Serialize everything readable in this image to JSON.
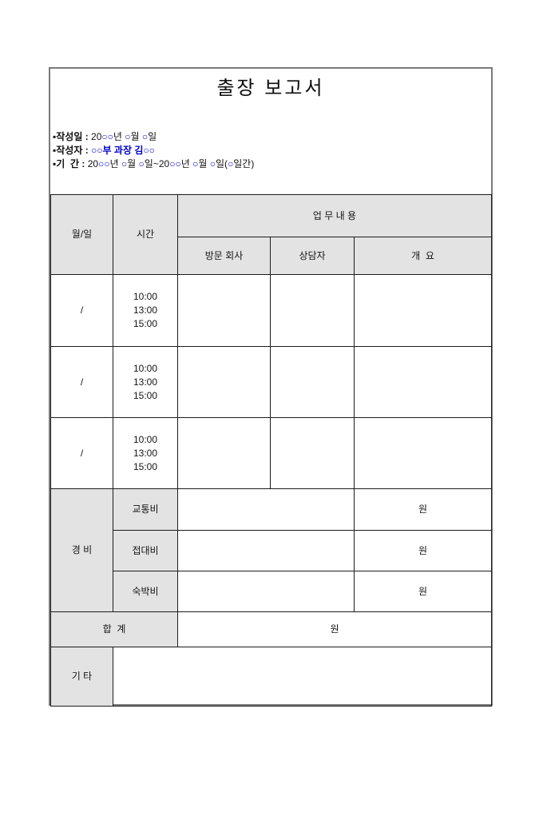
{
  "page": {
    "title": "출장 보고서"
  },
  "info": {
    "lines": [
      {
        "segments": [
          {
            "t": "▪작성일",
            "b": 1
          },
          {
            "t": " : ",
            "b": 1
          },
          {
            "t": "20"
          },
          {
            "t": "○○",
            "b": 1,
            "c": "#0000cc"
          },
          {
            "t": "년 "
          },
          {
            "t": "○",
            "b": 1,
            "c": "#0000cc"
          },
          {
            "t": "월 "
          },
          {
            "t": "○",
            "b": 1,
            "c": "#0000cc"
          },
          {
            "t": "일"
          }
        ]
      },
      {
        "segments": [
          {
            "t": "▪작성자",
            "b": 1
          },
          {
            "t": " : ",
            "b": 1
          },
          {
            "t": "○○부 과장 김○○",
            "b": 1,
            "c": "#0000cc"
          }
        ]
      },
      {
        "segments": [
          {
            "t": "▪기  간",
            "b": 1
          },
          {
            "t": " : ",
            "b": 1
          },
          {
            "t": "20"
          },
          {
            "t": "○○",
            "b": 1,
            "c": "#0000cc"
          },
          {
            "t": "년 "
          },
          {
            "t": "○",
            "b": 1,
            "c": "#0000cc"
          },
          {
            "t": "월 "
          },
          {
            "t": "○",
            "b": 1,
            "c": "#0000cc"
          },
          {
            "t": "일~20"
          },
          {
            "t": "○○",
            "b": 1,
            "c": "#0000cc"
          },
          {
            "t": "년 "
          },
          {
            "t": "○",
            "b": 1,
            "c": "#0000cc"
          },
          {
            "t": "월 "
          },
          {
            "t": "○",
            "b": 1,
            "c": "#0000cc"
          },
          {
            "t": "일("
          },
          {
            "t": "○",
            "b": 1,
            "c": "#0000cc"
          },
          {
            "t": "일간)"
          }
        ]
      }
    ]
  },
  "table": {
    "header": {
      "month_day": "월/일",
      "time": "시간",
      "work_content": "업 무 내 용",
      "visit_company": "방문 회사",
      "counselor": "상담자",
      "outline": "개  요"
    },
    "trip_rows": [
      {
        "month_day": "/",
        "times": "10:00\n13:00\n15:00"
      },
      {
        "month_day": "/",
        "times": "10:00\n13:00\n15:00"
      },
      {
        "month_day": "/",
        "times": "10:00\n13:00\n15:00"
      }
    ],
    "expense": {
      "label": "경 비",
      "items": [
        {
          "name": "교통비",
          "unit": "원"
        },
        {
          "name": "접대비",
          "unit": "원"
        },
        {
          "name": "숙박비",
          "unit": "원"
        }
      ]
    },
    "total": {
      "label": "합  계",
      "unit": "원"
    },
    "etc": {
      "label": "기 타"
    }
  },
  "colors": {
    "accent_blue": "#0000cc",
    "header_bg": "#e3e3e3",
    "page_border": "#7a7a7a",
    "table_border": "#1c1c1c"
  }
}
